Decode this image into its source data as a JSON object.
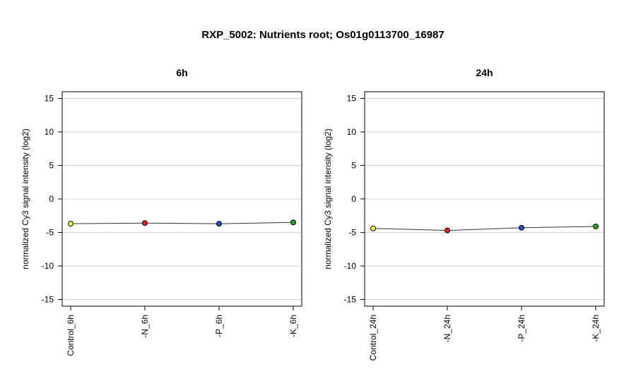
{
  "title": "RXP_5002: Nutrients root; Os01g0113700_16987",
  "chart_data": [
    {
      "type": "line",
      "title": "6h",
      "ylabel": "normalized Cy3 signal intensity (log2)",
      "xlabel": "",
      "ylim": [
        -16,
        16
      ],
      "yticks": [
        -15,
        -10,
        -5,
        0,
        5,
        10,
        15
      ],
      "grid": true,
      "categories": [
        "Control_6h",
        "-N_6h",
        "-P_6h",
        "-K_6h"
      ],
      "values": [
        -3.7,
        -3.6,
        -3.7,
        -3.5
      ],
      "point_colors": [
        "#ffff44",
        "#dd2222",
        "#2255cc",
        "#22aa22"
      ]
    },
    {
      "type": "line",
      "title": "24h",
      "ylabel": "normalized Cy3 signal intensity (log2)",
      "xlabel": "",
      "ylim": [
        -16,
        16
      ],
      "yticks": [
        -15,
        -10,
        -5,
        0,
        5,
        10,
        15
      ],
      "grid": true,
      "categories": [
        "Control_24h",
        "-N_24h",
        "-P_24h",
        "-K_24h"
      ],
      "values": [
        -4.4,
        -4.7,
        -4.3,
        -4.1
      ],
      "point_colors": [
        "#ffff44",
        "#dd2222",
        "#2255cc",
        "#22aa22"
      ]
    }
  ]
}
